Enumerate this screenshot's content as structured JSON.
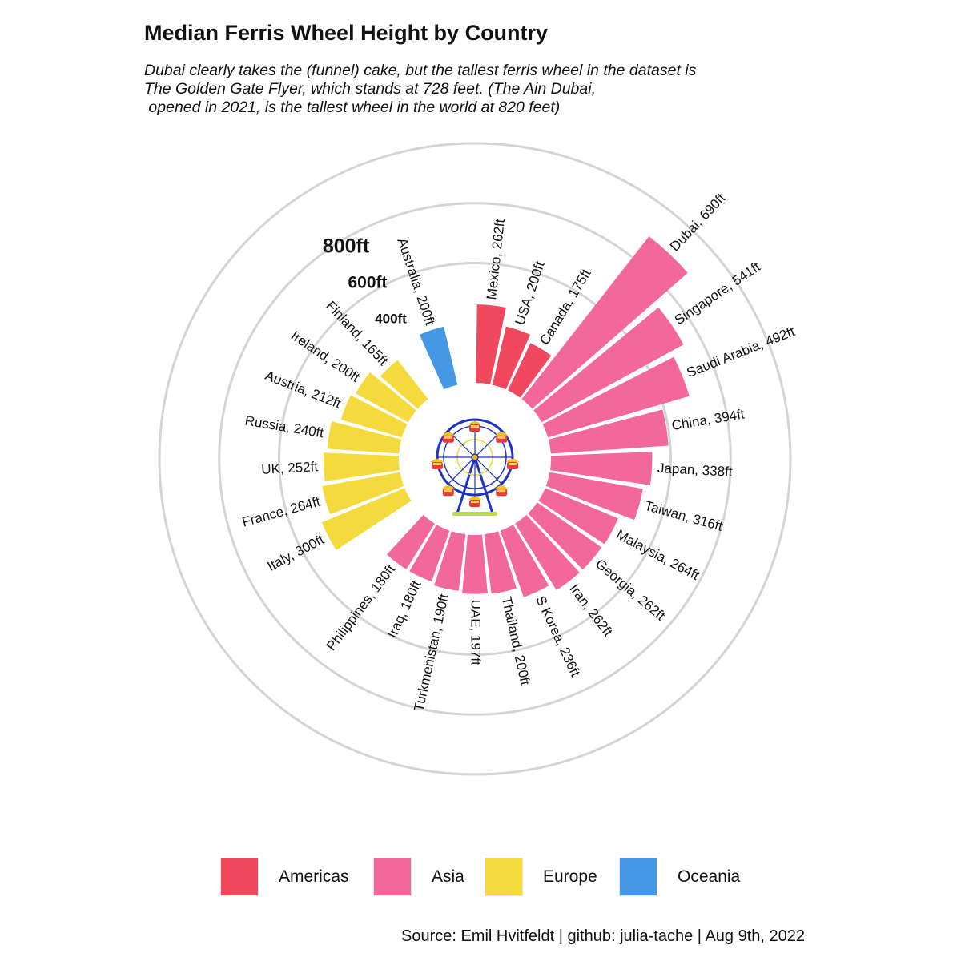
{
  "title": "Median Ferris Wheel Height by Country",
  "subtitle": [
    "Dubai clearly takes the (funnel) cake, but the tallest ferris wheel in the dataset is",
    "The Golden Gate Flyer, which stands at 728 feet. (The Ain Dubai,",
    " opened in 2021, is the tallest wheel in the world at 820 feet)"
  ],
  "caption": "Source: Emil Hvitfeldt | github: julia-tache | Aug 9th, 2022",
  "chart_data": {
    "type": "bar",
    "coord": "polar",
    "unit": "ft",
    "ylim": [
      0,
      800
    ],
    "grid_values": [
      400,
      600,
      800
    ],
    "grid_labels": [
      "400ft",
      "600ft",
      "800ft"
    ],
    "colors": {
      "Americas": "#f2485d",
      "Asia": "#f2689b",
      "Europe": "#f5da3d",
      "Oceania": "#4599e4"
    },
    "legend_order": [
      "Americas",
      "Asia",
      "Europe",
      "Oceania"
    ],
    "bars": [
      {
        "country": "Mexico",
        "value": 262,
        "region": "Americas",
        "label": "Mexico, 262ft"
      },
      {
        "country": "USA",
        "value": 200,
        "region": "Americas",
        "label": "USA, 200ft"
      },
      {
        "country": "Canada",
        "value": 175,
        "region": "Americas",
        "label": "Canada, 175ft"
      },
      {
        "country": "Dubai",
        "value": 690,
        "region": "Asia",
        "label": "Dubai, 690ft"
      },
      {
        "country": "Singapore",
        "value": 541,
        "region": "Asia",
        "label": "Singapore, 541ft"
      },
      {
        "country": "Saudi Arabia",
        "value": 492,
        "region": "Asia",
        "label": "Saudi Arabia, 492ft"
      },
      {
        "country": "China",
        "value": 394,
        "region": "Asia",
        "label": "China, 394ft"
      },
      {
        "country": "Japan",
        "value": 338,
        "region": "Asia",
        "label": "Japan, 338ft"
      },
      {
        "country": "Taiwan",
        "value": 316,
        "region": "Asia",
        "label": "Taiwan, 316ft"
      },
      {
        "country": "Malaysia",
        "value": 264,
        "region": "Asia",
        "label": "Malaysia, 264ft"
      },
      {
        "country": "Georgia",
        "value": 262,
        "region": "Asia",
        "label": "Georgia, 262ft"
      },
      {
        "country": "Iran",
        "value": 262,
        "region": "Asia",
        "label": "Iran, 262ft"
      },
      {
        "country": "S Korea",
        "value": 236,
        "region": "Asia",
        "label": "S Korea, 236ft"
      },
      {
        "country": "Thailand",
        "value": 200,
        "region": "Asia",
        "label": "Thailand, 200ft"
      },
      {
        "country": "UAE",
        "value": 197,
        "region": "Asia",
        "label": "UAE, 197ft"
      },
      {
        "country": "Turkmenistan",
        "value": 190,
        "region": "Asia",
        "label": "Turkmenistan, 190ft"
      },
      {
        "country": "Iraq",
        "value": 180,
        "region": "Asia",
        "label": "Iraq, 180ft"
      },
      {
        "country": "Philippines",
        "value": 180,
        "region": "Asia",
        "label": "Philippines, 180ft"
      },
      {
        "country": "",
        "value": 0,
        "region": "",
        "label": ""
      },
      {
        "country": "Italy",
        "value": 300,
        "region": "Europe",
        "label": "Italy, 300ft"
      },
      {
        "country": "France",
        "value": 264,
        "region": "Europe",
        "label": "France, 264ft"
      },
      {
        "country": "UK",
        "value": 252,
        "region": "Europe",
        "label": "UK, 252ft"
      },
      {
        "country": "Russia",
        "value": 240,
        "region": "Europe",
        "label": "Russia, 240ft"
      },
      {
        "country": "Austria",
        "value": 212,
        "region": "Europe",
        "label": "Austria, 212ft"
      },
      {
        "country": "Ireland",
        "value": 200,
        "region": "Europe",
        "label": "Ireland, 200ft"
      },
      {
        "country": "Finland",
        "value": 165,
        "region": "Europe",
        "label": "Finland, 165ft"
      },
      {
        "country": "",
        "value": 0,
        "region": "",
        "label": ""
      },
      {
        "country": "Australia",
        "value": 200,
        "region": "Oceania",
        "label": "Australia, 200ft"
      },
      {
        "country": "",
        "value": 0,
        "region": "",
        "label": ""
      }
    ],
    "center_image": "ferris-wheel-icon"
  },
  "legend": [
    {
      "label": "Americas",
      "color": "#f2485d"
    },
    {
      "label": "Asia",
      "color": "#f2689b"
    },
    {
      "label": "Europe",
      "color": "#f5da3d"
    },
    {
      "label": "Oceania",
      "color": "#4599e4"
    }
  ]
}
